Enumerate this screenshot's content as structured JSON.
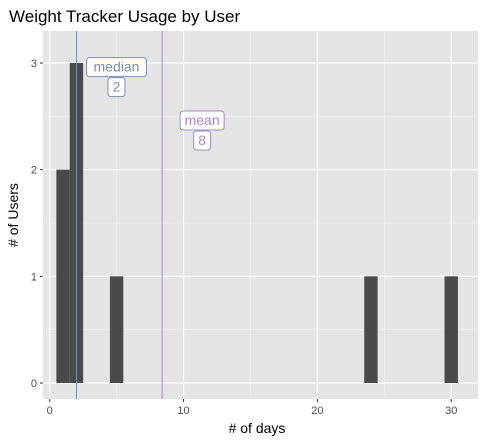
{
  "chart_data": {
    "type": "bar",
    "title": "Weight Tracker Usage by User",
    "xlabel": "# of days",
    "ylabel": "# of Users",
    "xlim": [
      -0.5,
      32
    ],
    "ylim": [
      -0.15,
      3.3
    ],
    "x_ticks": [
      0,
      10,
      20,
      30
    ],
    "y_ticks": [
      0,
      1,
      2,
      3
    ],
    "bin_width": 1,
    "bins": [
      {
        "x": 1,
        "count": 2
      },
      {
        "x": 2,
        "count": 3
      },
      {
        "x": 5,
        "count": 1
      },
      {
        "x": 24,
        "count": 1
      },
      {
        "x": 30,
        "count": 1
      }
    ],
    "reference_lines": [
      {
        "label": "median",
        "value_label": "2",
        "x": 2,
        "color": "#7a8db8"
      },
      {
        "label": "mean",
        "value_label": "8",
        "x": 8.4,
        "color": "#a08ad0"
      }
    ],
    "bar_color": "#4a4a4a",
    "panel_background": "#e5e5e5",
    "grid": true
  }
}
